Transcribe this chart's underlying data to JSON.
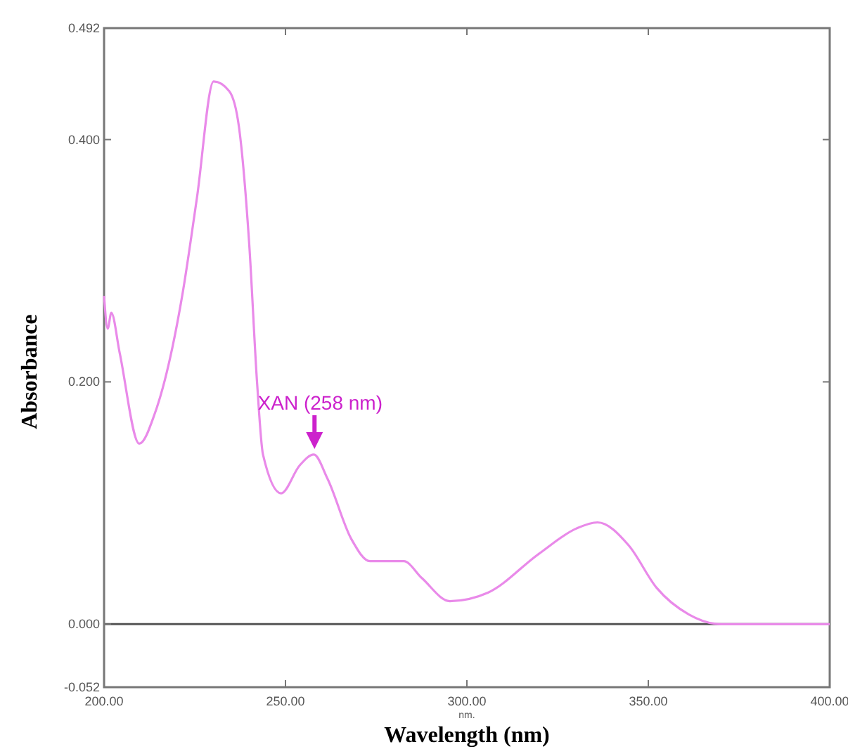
{
  "chart_data": {
    "type": "line",
    "xlabel": "Wavelength (nm)",
    "ylabel": "Absorbance",
    "xlim": [
      200,
      400
    ],
    "ylim": [
      -0.052,
      0.492
    ],
    "xticks": [
      {
        "value": 200,
        "label": "200.00"
      },
      {
        "value": 250,
        "label": "250.00"
      },
      {
        "value": 300,
        "label": "300.00"
      },
      {
        "value": 350,
        "label": "350.00"
      },
      {
        "value": 400,
        "label": "400.00"
      }
    ],
    "yticks": [
      {
        "value": -0.052,
        "label": "-0.052"
      },
      {
        "value": 0,
        "label": "0.000"
      },
      {
        "value": 0.2,
        "label": "0.200"
      },
      {
        "value": 0.4,
        "label": "0.400"
      },
      {
        "value": 0.492,
        "label": "0.492"
      }
    ],
    "grid": false,
    "marker": "none",
    "line_style": "solid",
    "ref_lines": [
      {
        "axis": "y",
        "value": 0,
        "color": "#555555"
      }
    ],
    "annotations": [
      {
        "text": "XAN (258 nm)",
        "x": 258,
        "y": 0.14
      },
      "nm."
    ],
    "series": [
      {
        "color": "#e98ae9",
        "x": [
          200,
          201,
          202,
          204.3,
          209.7,
          214,
          221.7,
          225.6,
          230.2,
          234.5,
          237.2,
          240,
          242.2,
          243.8,
          248.8,
          253.9,
          257.8,
          261.6,
          268.2,
          273.3,
          282.6,
          287.6,
          295.3,
          305.8,
          319.8,
          330.2,
          336,
          344.6,
          352.3,
          361.2,
          370,
          380,
          390,
          400
        ],
        "values": [
          0.271,
          0.244,
          0.257,
          0.224,
          0.149,
          0.174,
          0.274,
          0.352,
          0.448,
          0.44,
          0.41,
          0.314,
          0.198,
          0.14,
          0.108,
          0.131,
          0.14,
          0.12,
          0.07,
          0.052,
          0.052,
          0.038,
          0.019,
          0.026,
          0.058,
          0.079,
          0.084,
          0.065,
          0.03,
          0.008,
          0,
          0,
          0,
          0
        ]
      }
    ]
  }
}
